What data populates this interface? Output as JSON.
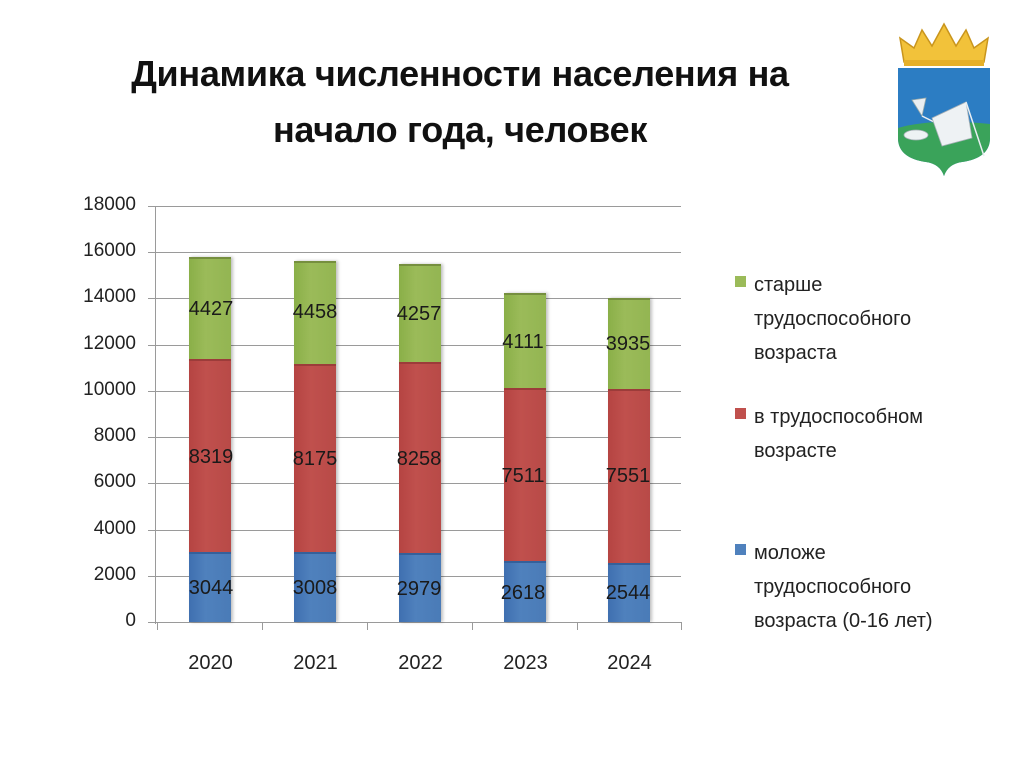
{
  "slide": {
    "title_line1": "Динамика численности населения на",
    "title_line2": "начало года, человек",
    "emblem_icon": "coat-of-arms-icon"
  },
  "colors": {
    "young": "#4f81bd",
    "working": "#c0504d",
    "older": "#9bbb59"
  },
  "chart_data": {
    "type": "bar",
    "stacked": true,
    "title": "Динамика численности населения на начало года, человек",
    "xlabel": "",
    "ylabel": "",
    "ylim": [
      0,
      18000
    ],
    "yticks": [
      "18000",
      "16000",
      "14000",
      "12000",
      "10000",
      "8000",
      "6000",
      "4000",
      "2000",
      "0"
    ],
    "grid": true,
    "legend_position": "right",
    "categories": [
      "2020",
      "2021",
      "2022",
      "2023",
      "2024"
    ],
    "series": [
      {
        "name": "моложе трудоспособного возраста (0-16 лет)",
        "values": [
          3044,
          3008,
          2979,
          2618,
          2544
        ]
      },
      {
        "name": "в трудоспособном возрасте",
        "values": [
          8319,
          8175,
          8258,
          7511,
          7551
        ]
      },
      {
        "name": "старше трудоспособного возраста",
        "values": [
          4427,
          4458,
          4257,
          4111,
          3935
        ]
      }
    ],
    "labels": {
      "young": [
        "3044",
        "3008",
        "2979",
        "2618",
        "2544"
      ],
      "working": [
        "8319",
        "8175",
        "8258",
        "7511",
        "7551"
      ],
      "older": [
        "4427",
        "4458",
        "4257",
        "4111",
        "3935"
      ]
    }
  },
  "legend": {
    "older": {
      "line1": "старше",
      "line2": "трудоспособного",
      "line3": "возраста"
    },
    "working": {
      "line1": "в трудоспособном",
      "line2": "возрасте"
    },
    "young": {
      "line1": "моложе",
      "line2": "трудоспособного",
      "line3": "возраста (0-16 лет)"
    }
  }
}
